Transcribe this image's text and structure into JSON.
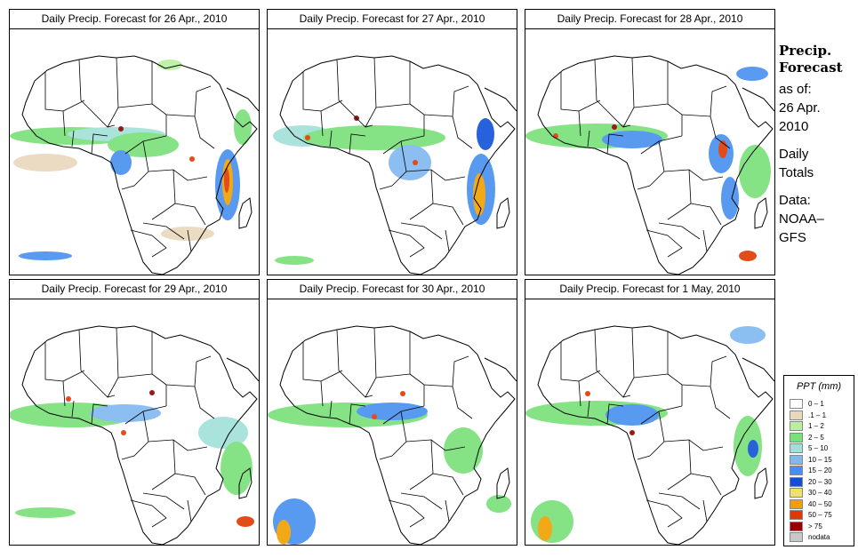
{
  "panels": [
    {
      "title": "Daily Precip. Forecast for  26 Apr., 2010"
    },
    {
      "title": "Daily Precip. Forecast for  27 Apr., 2010"
    },
    {
      "title": "Daily Precip. Forecast for  28 Apr., 2010"
    },
    {
      "title": "Daily Precip. Forecast for  29 Apr., 2010"
    },
    {
      "title": "Daily Precip. Forecast for  30 Apr., 2010"
    },
    {
      "title": "Daily Precip. Forecast for  1 May, 2010"
    }
  ],
  "sidebar": {
    "title_line1": "Precip.",
    "title_line2": "Forecast",
    "asof_line1": "as of:",
    "asof_line2": "26 Apr.",
    "asof_line3": "2010",
    "totals_line1": "Daily",
    "totals_line2": "Totals",
    "data_line1": "Data:",
    "data_line2": "NOAA–",
    "data_line3": "GFS"
  },
  "legend": {
    "title": "PPT (mm)",
    "items": [
      {
        "label": "0 – 1",
        "color": "#ffffff"
      },
      {
        "label": ".1 – 1",
        "color": "#e8d8bc"
      },
      {
        "label": "1 – 2",
        "color": "#b8f0a0"
      },
      {
        "label": "2 – 5",
        "color": "#78e078"
      },
      {
        "label": "5 – 10",
        "color": "#a0e0d8"
      },
      {
        "label": "10 – 15",
        "color": "#80b8f0"
      },
      {
        "label": "15 – 20",
        "color": "#4890f0"
      },
      {
        "label": "20 – 30",
        "color": "#1050d8"
      },
      {
        "label": "30 – 40",
        "color": "#f0e070"
      },
      {
        "label": "40 – 50",
        "color": "#f0a000"
      },
      {
        "label": "50 – 75",
        "color": "#e03800"
      },
      {
        "label": "> 75",
        "color": "#900000"
      },
      {
        "label": "nodata",
        "color": "#c8c8c8"
      }
    ]
  }
}
